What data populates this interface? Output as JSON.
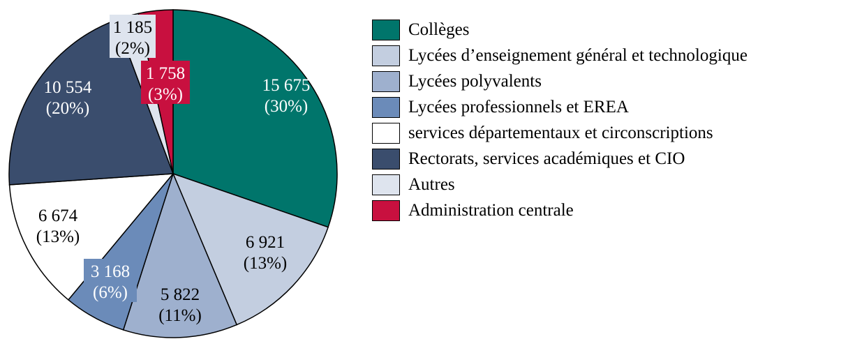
{
  "chart_data": {
    "type": "pie",
    "start": "top",
    "direction": "clockwise",
    "slices": [
      {
        "name": "Collèges",
        "value": 15675,
        "value_label": "15 675",
        "percent_label": "(30%)",
        "color": "#00756B",
        "label_color": "#ffffff"
      },
      {
        "name": "Lycées d’enseignement général et technologique",
        "value": 6921,
        "value_label": "6 921",
        "percent_label": "(13%)",
        "color": "#C3CEE0",
        "label_color": "#000000"
      },
      {
        "name": "Lycées polyvalents",
        "value": 5822,
        "value_label": "5 822",
        "percent_label": "(11%)",
        "color": "#9EB0CE",
        "label_color": "#000000"
      },
      {
        "name": "Lycées professionnels et EREA",
        "value": 3168,
        "value_label": "3 168",
        "percent_label": "(6%)",
        "color": "#6B8BB9",
        "label_color": "#ffffff"
      },
      {
        "name": "services départementaux et circonscriptions",
        "value": 6674,
        "value_label": "6 674",
        "percent_label": "(13%)",
        "color": "#FFFFFF",
        "label_color": "#000000"
      },
      {
        "name": "Rectorats, services académiques et CIO",
        "value": 10554,
        "value_label": "10 554",
        "percent_label": "(20%)",
        "color": "#3A4D6D",
        "label_color": "#ffffff"
      },
      {
        "name": "Autres",
        "value": 1185,
        "value_label": "1 185",
        "percent_label": "(2%)",
        "color": "#DEE4EE",
        "label_color": "#000000"
      },
      {
        "name": "Administration centrale",
        "value": 1758,
        "value_label": "1 758",
        "percent_label": "(3%)",
        "color": "#C8103F",
        "label_color": "#ffffff"
      }
    ],
    "legend_position": "right"
  }
}
